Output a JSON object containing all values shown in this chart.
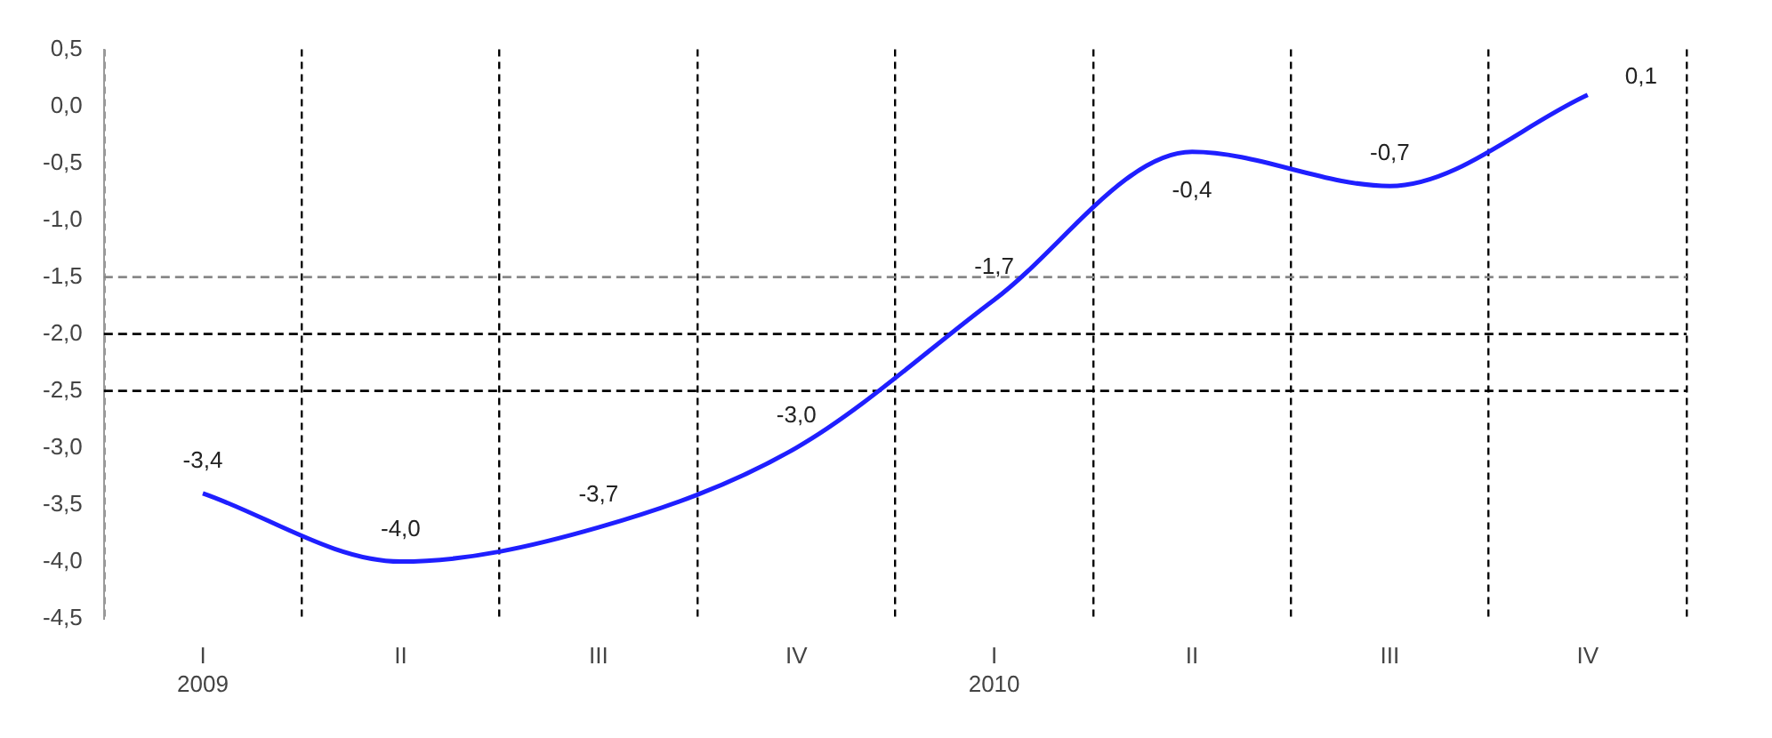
{
  "chart_data": {
    "type": "line",
    "categories": [
      "I\n2009",
      "II",
      "III",
      "IV",
      "I\n2010",
      "II",
      "III",
      "IV"
    ],
    "series": [
      {
        "color": "#1f1fff",
        "values": [
          -3.4,
          -4.0,
          -3.7,
          -3.0,
          -1.7,
          -0.4,
          -0.7,
          0.1
        ],
        "value_labels": [
          "-3,4",
          "-4,0",
          "-3,7",
          "-3,0",
          "-1,7",
          "-0,4",
          "-0,7",
          "0,1"
        ]
      }
    ],
    "ylim": [
      -4.5,
      0.5
    ],
    "yticks": [
      {
        "value": 0.5,
        "label": "0,5"
      },
      {
        "value": 0,
        "label": "0,0"
      },
      {
        "value": -0.5,
        "label": "-0,5"
      },
      {
        "value": -1,
        "label": "-1,0"
      },
      {
        "value": -1.5,
        "label": "-1,5"
      },
      {
        "value": -2,
        "label": "-2,0"
      },
      {
        "value": -2.5,
        "label": "-2,5"
      },
      {
        "value": -3,
        "label": "-3,0"
      },
      {
        "value": -3.5,
        "label": "-3,5"
      },
      {
        "value": -4,
        "label": "-4,0"
      },
      {
        "value": -4.5,
        "label": "-4,5"
      }
    ],
    "ref_lines": [
      {
        "axis": "y",
        "value": -1.5,
        "color": "#888888",
        "line_style": "dashed"
      },
      {
        "axis": "y",
        "value": -2,
        "color": "#000000",
        "line_style": "dashed"
      },
      {
        "axis": "y",
        "value": -2.5,
        "color": "#000000",
        "line_style": "dashed"
      }
    ],
    "grid": "x",
    "legend": false,
    "marker": "none",
    "line_style": "solid"
  }
}
